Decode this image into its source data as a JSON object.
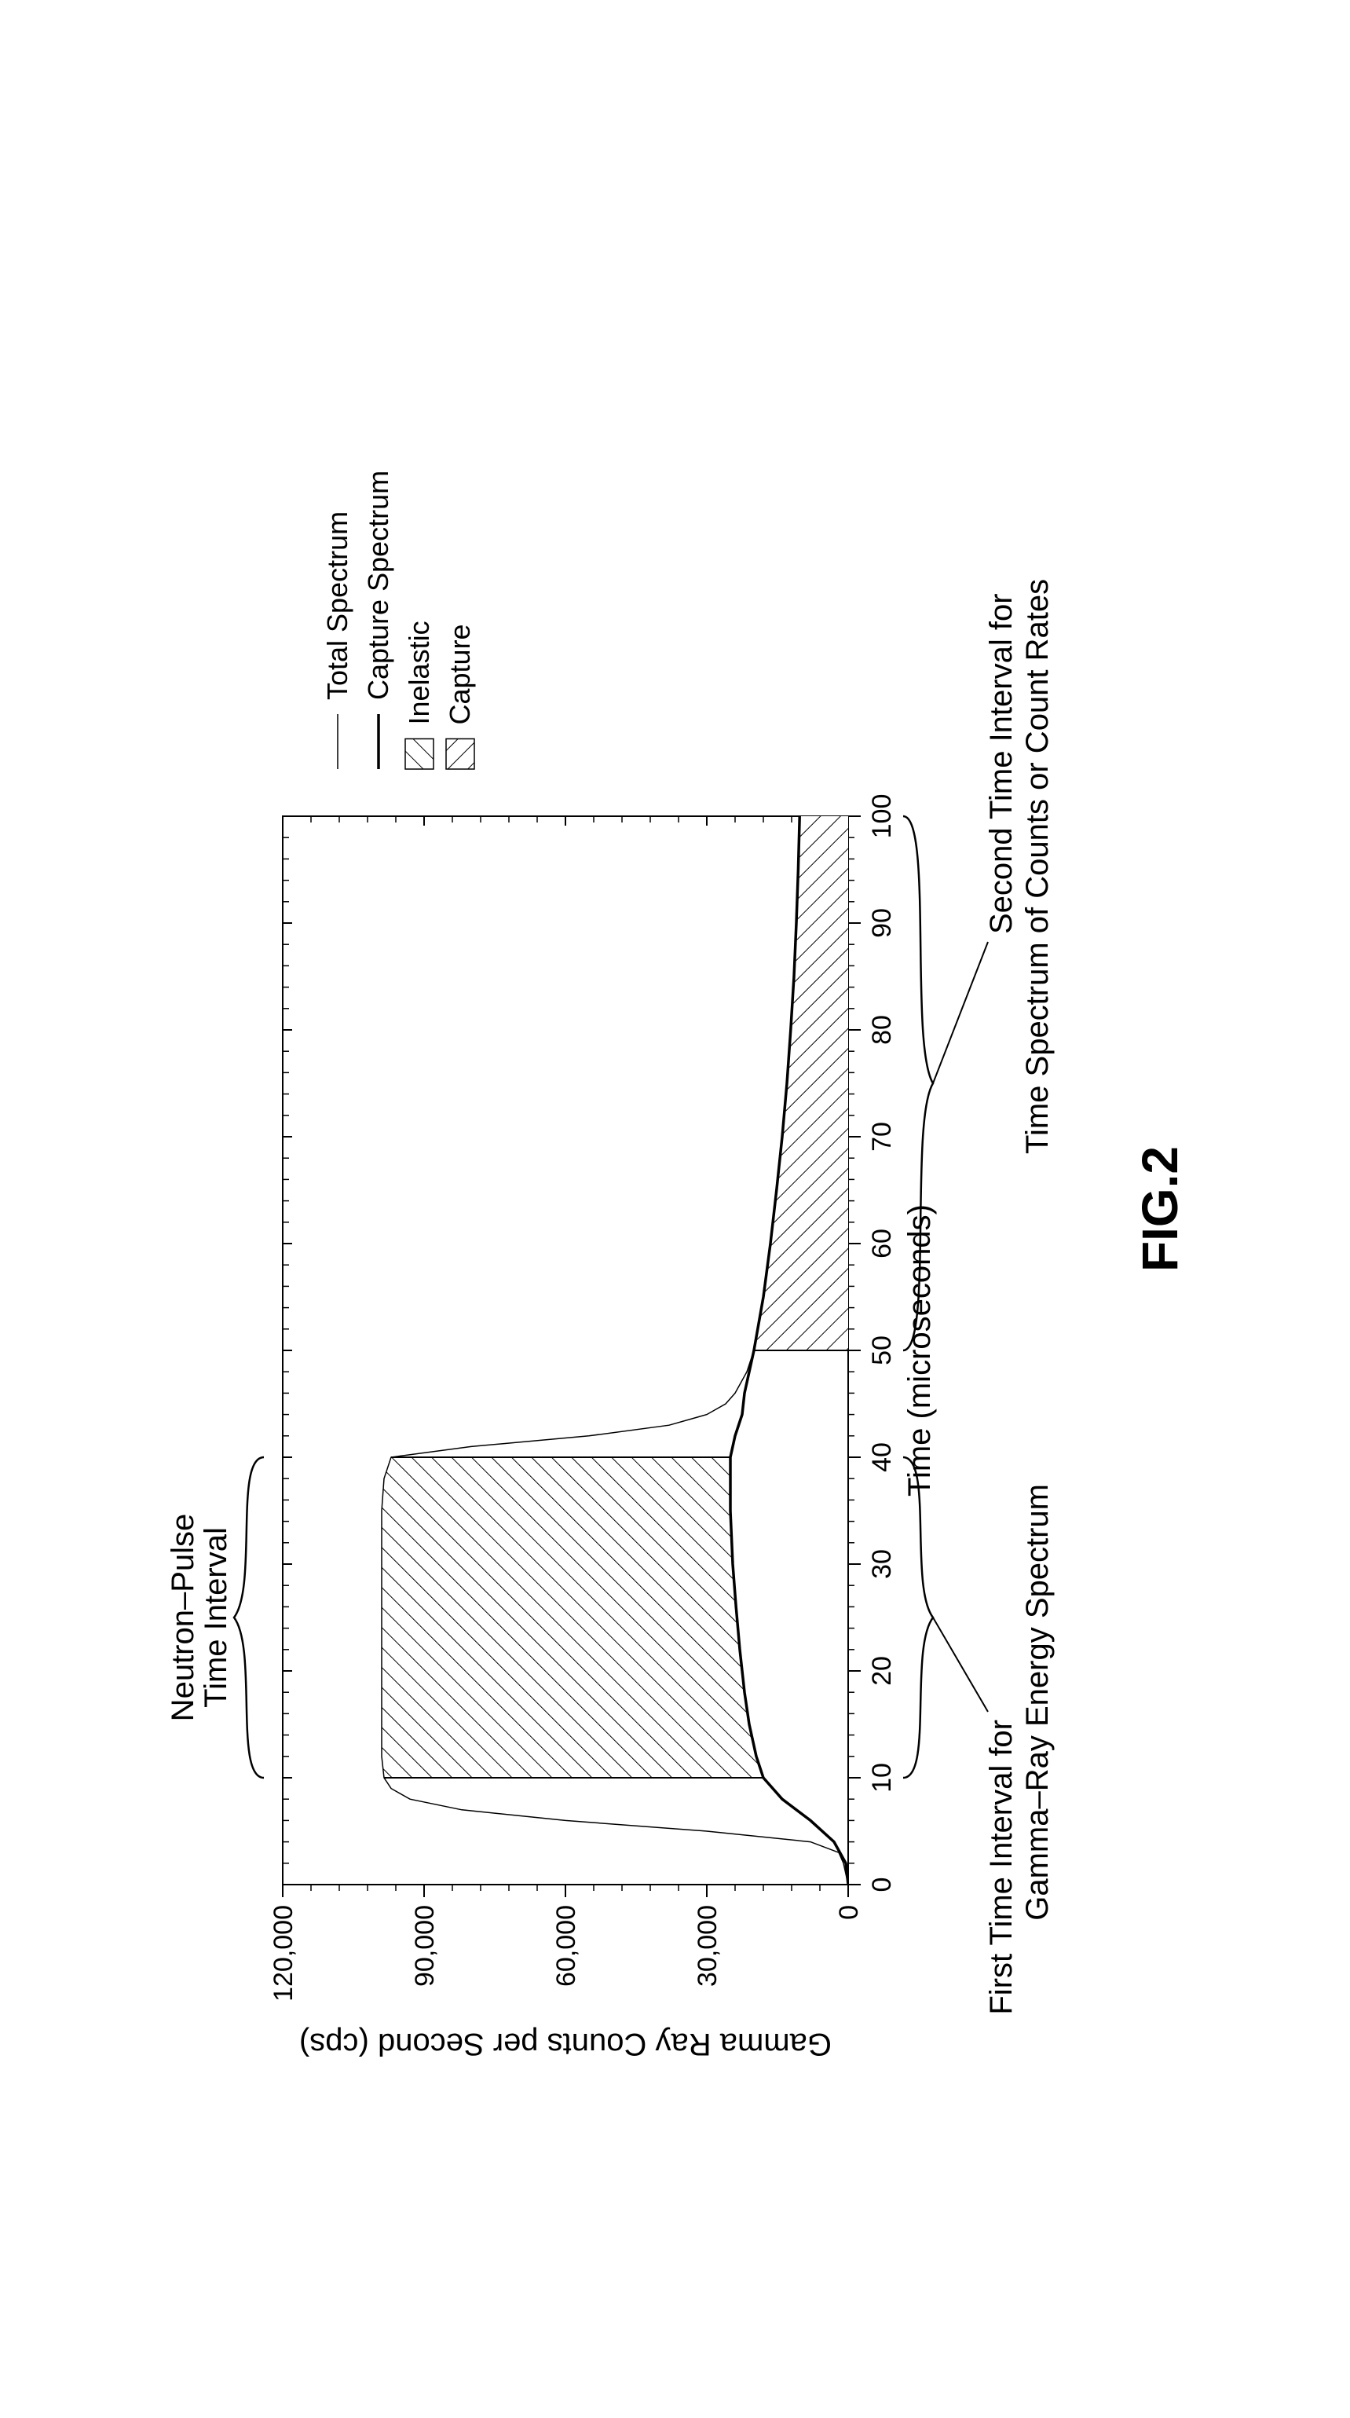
{
  "figure_label": "FIG.2",
  "chart": {
    "type": "line-area",
    "xlabel": "Time (microseconds)",
    "ylabel": "Gamma Ray Counts per Second (cps)",
    "label_fontsize": 40,
    "tick_fontsize": 34,
    "annotation_fontsize": 40,
    "xlim": [
      0,
      100
    ],
    "ylim": [
      0,
      120000
    ],
    "xticks": [
      0,
      10,
      20,
      30,
      40,
      50,
      60,
      70,
      80,
      90,
      100
    ],
    "yticks": [
      0,
      30000,
      60000,
      90000,
      120000
    ],
    "yticklabels": [
      "0",
      "30,000",
      "60,000",
      "90,000",
      "120,000"
    ],
    "minor_x_step": 2,
    "minor_y_step": 6000,
    "legend": {
      "items": [
        "Total Spectrum",
        "Capture Spectrum",
        "Inelastic",
        "Capture"
      ],
      "fontsize": 36
    },
    "annotations": {
      "pulse_label_l1": "Neutron–Pulse",
      "pulse_label_l2": "Time Interval",
      "first_l1": "First Time Interval for",
      "first_l2": "Gamma–Ray Energy Spectrum",
      "second_l1": "Second Time Interval for",
      "second_l2": "Time Spectrum of Counts or Count Rates"
    },
    "series": {
      "total": [
        [
          0,
          0
        ],
        [
          2,
          1000
        ],
        [
          3,
          2000
        ],
        [
          4,
          8000
        ],
        [
          5,
          30000
        ],
        [
          6,
          60000
        ],
        [
          7,
          82000
        ],
        [
          8,
          93000
        ],
        [
          9,
          97000
        ],
        [
          10,
          98500
        ],
        [
          12,
          99000
        ],
        [
          15,
          99000
        ],
        [
          20,
          99000
        ],
        [
          25,
          99000
        ],
        [
          30,
          99000
        ],
        [
          35,
          99000
        ],
        [
          38,
          98500
        ],
        [
          40,
          97000
        ],
        [
          41,
          80000
        ],
        [
          42,
          55000
        ],
        [
          43,
          38000
        ],
        [
          44,
          30000
        ],
        [
          45,
          26000
        ],
        [
          46,
          24000
        ],
        [
          48,
          21500
        ],
        [
          50,
          20000
        ],
        [
          55,
          18000
        ],
        [
          60,
          16500
        ],
        [
          65,
          15200
        ],
        [
          70,
          14000
        ],
        [
          75,
          13000
        ],
        [
          80,
          12200
        ],
        [
          85,
          11500
        ],
        [
          90,
          11000
        ],
        [
          95,
          10600
        ],
        [
          100,
          10300
        ]
      ],
      "capture": [
        [
          0,
          0
        ],
        [
          2,
          500
        ],
        [
          4,
          3000
        ],
        [
          6,
          8000
        ],
        [
          8,
          14000
        ],
        [
          10,
          18000
        ],
        [
          12,
          19500
        ],
        [
          15,
          21000
        ],
        [
          18,
          22000
        ],
        [
          22,
          23000
        ],
        [
          26,
          23800
        ],
        [
          30,
          24500
        ],
        [
          35,
          25000
        ],
        [
          40,
          25000
        ],
        [
          42,
          24000
        ],
        [
          44,
          22500
        ],
        [
          46,
          22000
        ],
        [
          48,
          21000
        ],
        [
          50,
          20000
        ],
        [
          55,
          18000
        ],
        [
          60,
          16500
        ],
        [
          65,
          15200
        ],
        [
          70,
          14000
        ],
        [
          75,
          13000
        ],
        [
          80,
          12200
        ],
        [
          85,
          11500
        ],
        [
          90,
          11000
        ],
        [
          95,
          10600
        ],
        [
          100,
          10300
        ]
      ]
    },
    "regions": {
      "inelastic_x": [
        10,
        40
      ],
      "capture_x": [
        50,
        100
      ]
    },
    "brackets": {
      "first_x": [
        10,
        40
      ],
      "second_x": [
        50,
        100
      ]
    },
    "colors": {
      "axis": "#000000",
      "line": "#000000",
      "hatch": "#000000",
      "background": "#ffffff"
    },
    "linewidths": {
      "total": 1.5,
      "capture": 3.5,
      "axis": 2
    }
  }
}
